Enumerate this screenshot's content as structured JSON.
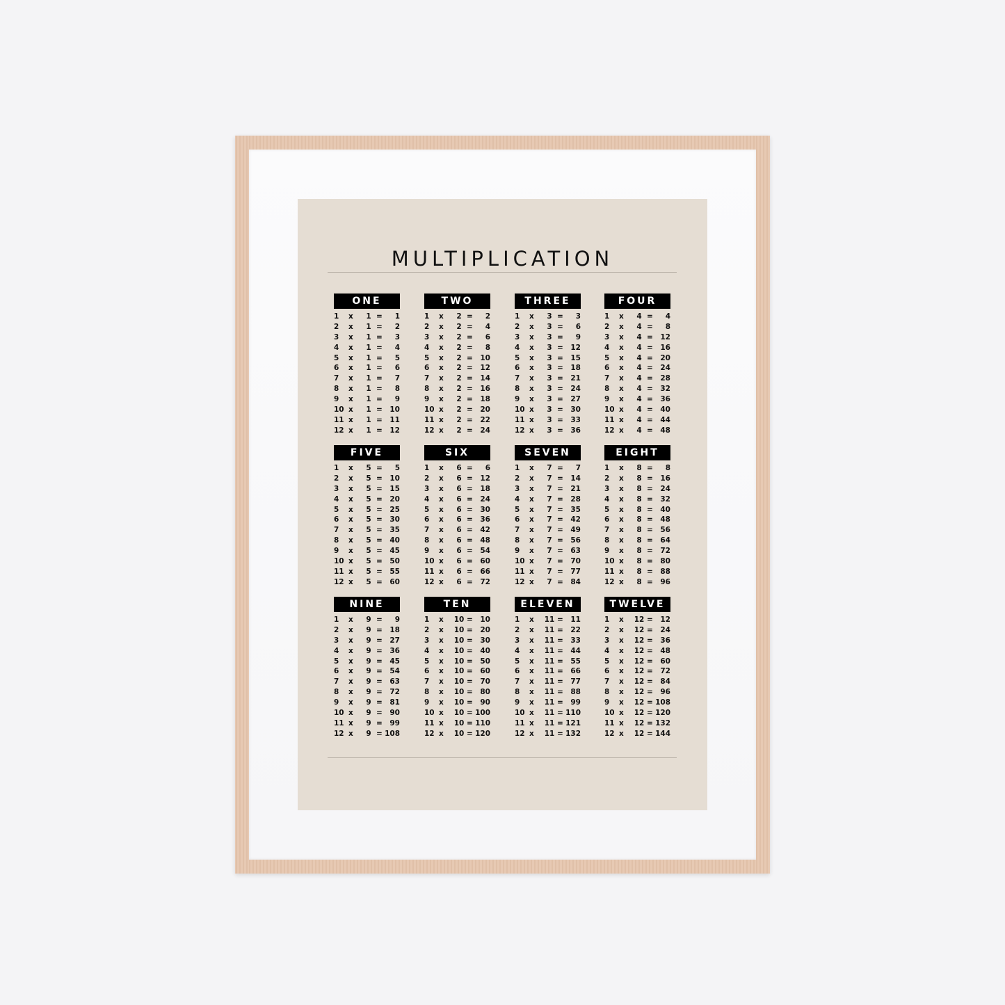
{
  "title": "MULTIPLICATION",
  "operators": {
    "times": "x",
    "equals": "="
  },
  "colors": {
    "poster": "#e5ddd3",
    "header": "#000000",
    "frame": "#e7c9b3",
    "wall": "#f4f4f6"
  },
  "tables": [
    {
      "label": "ONE",
      "rows": [
        [
          1,
          1,
          1
        ],
        [
          2,
          1,
          2
        ],
        [
          3,
          1,
          3
        ],
        [
          4,
          1,
          4
        ],
        [
          5,
          1,
          5
        ],
        [
          6,
          1,
          6
        ],
        [
          7,
          1,
          7
        ],
        [
          8,
          1,
          8
        ],
        [
          9,
          1,
          9
        ],
        [
          10,
          1,
          10
        ],
        [
          11,
          1,
          11
        ],
        [
          12,
          1,
          12
        ]
      ]
    },
    {
      "label": "TWO",
      "rows": [
        [
          1,
          2,
          2
        ],
        [
          2,
          2,
          4
        ],
        [
          3,
          2,
          6
        ],
        [
          4,
          2,
          8
        ],
        [
          5,
          2,
          10
        ],
        [
          6,
          2,
          12
        ],
        [
          7,
          2,
          14
        ],
        [
          8,
          2,
          16
        ],
        [
          9,
          2,
          18
        ],
        [
          10,
          2,
          20
        ],
        [
          11,
          2,
          22
        ],
        [
          12,
          2,
          24
        ]
      ]
    },
    {
      "label": "THREE",
      "rows": [
        [
          1,
          3,
          3
        ],
        [
          2,
          3,
          6
        ],
        [
          3,
          3,
          9
        ],
        [
          4,
          3,
          12
        ],
        [
          5,
          3,
          15
        ],
        [
          6,
          3,
          18
        ],
        [
          7,
          3,
          21
        ],
        [
          8,
          3,
          24
        ],
        [
          9,
          3,
          27
        ],
        [
          10,
          3,
          30
        ],
        [
          11,
          3,
          33
        ],
        [
          12,
          3,
          36
        ]
      ]
    },
    {
      "label": "FOUR",
      "rows": [
        [
          1,
          4,
          4
        ],
        [
          2,
          4,
          8
        ],
        [
          3,
          4,
          12
        ],
        [
          4,
          4,
          16
        ],
        [
          5,
          4,
          20
        ],
        [
          6,
          4,
          24
        ],
        [
          7,
          4,
          28
        ],
        [
          8,
          4,
          32
        ],
        [
          9,
          4,
          36
        ],
        [
          10,
          4,
          40
        ],
        [
          11,
          4,
          44
        ],
        [
          12,
          4,
          48
        ]
      ]
    },
    {
      "label": "FIVE",
      "rows": [
        [
          1,
          5,
          5
        ],
        [
          2,
          5,
          10
        ],
        [
          3,
          5,
          15
        ],
        [
          4,
          5,
          20
        ],
        [
          5,
          5,
          25
        ],
        [
          6,
          5,
          30
        ],
        [
          7,
          5,
          35
        ],
        [
          8,
          5,
          40
        ],
        [
          9,
          5,
          45
        ],
        [
          10,
          5,
          50
        ],
        [
          11,
          5,
          55
        ],
        [
          12,
          5,
          60
        ]
      ]
    },
    {
      "label": "SIX",
      "rows": [
        [
          1,
          6,
          6
        ],
        [
          2,
          6,
          12
        ],
        [
          3,
          6,
          18
        ],
        [
          4,
          6,
          24
        ],
        [
          5,
          6,
          30
        ],
        [
          6,
          6,
          36
        ],
        [
          7,
          6,
          42
        ],
        [
          8,
          6,
          48
        ],
        [
          9,
          6,
          54
        ],
        [
          10,
          6,
          60
        ],
        [
          11,
          6,
          66
        ],
        [
          12,
          6,
          72
        ]
      ]
    },
    {
      "label": "SEVEN",
      "rows": [
        [
          1,
          7,
          7
        ],
        [
          2,
          7,
          14
        ],
        [
          3,
          7,
          21
        ],
        [
          4,
          7,
          28
        ],
        [
          5,
          7,
          35
        ],
        [
          6,
          7,
          42
        ],
        [
          7,
          7,
          49
        ],
        [
          8,
          7,
          56
        ],
        [
          9,
          7,
          63
        ],
        [
          10,
          7,
          70
        ],
        [
          11,
          7,
          77
        ],
        [
          12,
          7,
          84
        ]
      ]
    },
    {
      "label": "EIGHT",
      "rows": [
        [
          1,
          8,
          8
        ],
        [
          2,
          8,
          16
        ],
        [
          3,
          8,
          24
        ],
        [
          4,
          8,
          32
        ],
        [
          5,
          8,
          40
        ],
        [
          6,
          8,
          48
        ],
        [
          7,
          8,
          56
        ],
        [
          8,
          8,
          64
        ],
        [
          9,
          8,
          72
        ],
        [
          10,
          8,
          80
        ],
        [
          11,
          8,
          88
        ],
        [
          12,
          8,
          96
        ]
      ]
    },
    {
      "label": "NINE",
      "rows": [
        [
          1,
          9,
          9
        ],
        [
          2,
          9,
          18
        ],
        [
          3,
          9,
          27
        ],
        [
          4,
          9,
          36
        ],
        [
          5,
          9,
          45
        ],
        [
          6,
          9,
          54
        ],
        [
          7,
          9,
          63
        ],
        [
          8,
          9,
          72
        ],
        [
          9,
          9,
          81
        ],
        [
          10,
          9,
          90
        ],
        [
          11,
          9,
          99
        ],
        [
          12,
          9,
          108
        ]
      ]
    },
    {
      "label": "TEN",
      "rows": [
        [
          1,
          10,
          10
        ],
        [
          2,
          10,
          20
        ],
        [
          3,
          10,
          30
        ],
        [
          4,
          10,
          40
        ],
        [
          5,
          10,
          50
        ],
        [
          6,
          10,
          60
        ],
        [
          7,
          10,
          70
        ],
        [
          8,
          10,
          80
        ],
        [
          9,
          10,
          90
        ],
        [
          10,
          10,
          100
        ],
        [
          11,
          10,
          110
        ],
        [
          12,
          10,
          120
        ]
      ]
    },
    {
      "label": "ELEVEN",
      "rows": [
        [
          1,
          11,
          11
        ],
        [
          2,
          11,
          22
        ],
        [
          3,
          11,
          33
        ],
        [
          4,
          11,
          44
        ],
        [
          5,
          11,
          55
        ],
        [
          6,
          11,
          66
        ],
        [
          7,
          11,
          77
        ],
        [
          8,
          11,
          88
        ],
        [
          9,
          11,
          99
        ],
        [
          10,
          11,
          110
        ],
        [
          11,
          11,
          121
        ],
        [
          12,
          11,
          132
        ]
      ]
    },
    {
      "label": "TWELVE",
      "rows": [
        [
          1,
          12,
          12
        ],
        [
          2,
          12,
          24
        ],
        [
          3,
          12,
          36
        ],
        [
          4,
          12,
          48
        ],
        [
          5,
          12,
          60
        ],
        [
          6,
          12,
          72
        ],
        [
          7,
          12,
          84
        ],
        [
          8,
          12,
          96
        ],
        [
          9,
          12,
          108
        ],
        [
          10,
          12,
          120
        ],
        [
          11,
          12,
          132
        ],
        [
          12,
          12,
          144
        ]
      ]
    }
  ]
}
